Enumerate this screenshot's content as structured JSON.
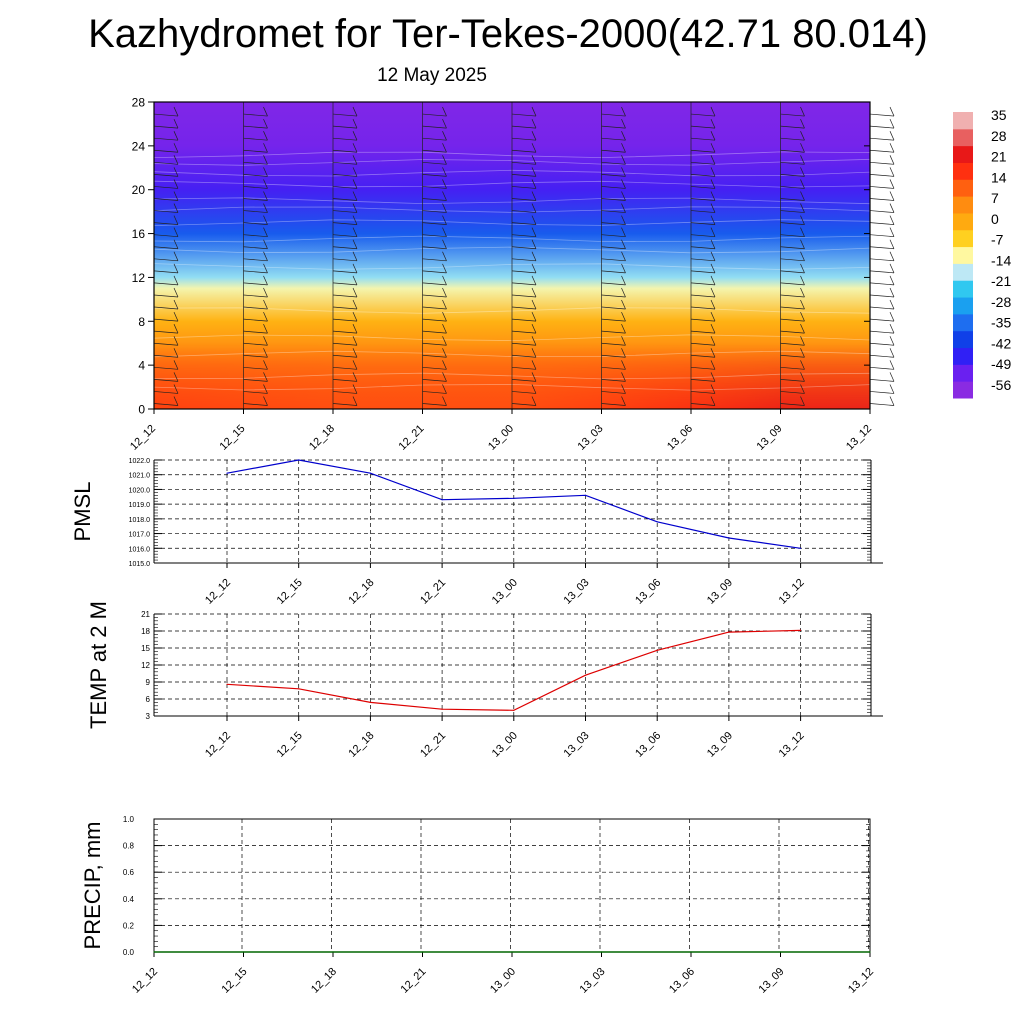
{
  "title": "Kazhydromet for Ter-Tekes-2000(42.71 80.014)",
  "subtitle": "12 May 2025",
  "chart_data": [
    {
      "type": "heatmap",
      "name": "temperature-height-section",
      "xlabel": "",
      "ylabel": "",
      "x": [
        "12_12",
        "12_15",
        "12_18",
        "12_21",
        "13_00",
        "13_03",
        "13_06",
        "13_09",
        "13_12"
      ],
      "y_ticks": [
        0,
        4,
        8,
        12,
        16,
        20,
        24,
        28
      ],
      "ylim": [
        0,
        28
      ],
      "grid": false,
      "colorbar": {
        "position": "right",
        "labels": [
          "35",
          "28",
          "21",
          "14",
          "7",
          "0",
          "-7",
          "-14",
          "-21",
          "-28",
          "-35",
          "-42",
          "-49",
          "-56"
        ],
        "colors": [
          "#8a2be2",
          "#6a20f0",
          "#3020f5",
          "#1040e8",
          "#1e6ef0",
          "#1aa0f0",
          "#30c8f0",
          "#bde8f5",
          "#fff8a0",
          "#ffd020",
          "#ffaa10",
          "#ff8c10",
          "#ff6010",
          "#ff3010",
          "#e81818",
          "#e86060",
          "#f0b0b0"
        ]
      },
      "temperature_profile": [
        {
          "height": 0,
          "temp": 14
        },
        {
          "height": 4,
          "temp": 10
        },
        {
          "height": 8,
          "temp": 0
        },
        {
          "height": 11,
          "temp": -12
        },
        {
          "height": 12,
          "temp": -19
        },
        {
          "height": 16,
          "temp": -38
        },
        {
          "height": 20,
          "temp": -50
        },
        {
          "height": 24,
          "temp": -56
        },
        {
          "height": 28,
          "temp": -58
        }
      ],
      "surface_temps": [
        12,
        11,
        10,
        10,
        10,
        12,
        15,
        19,
        20
      ]
    },
    {
      "type": "line",
      "name": "pmsl",
      "ylabel": "PMSL",
      "x": [
        "12_12",
        "12_15",
        "12_18",
        "12_21",
        "13_00",
        "13_03",
        "13_06",
        "13_09",
        "13_12"
      ],
      "y_ticks": [
        "1015.0",
        "1016.0",
        "1017.0",
        "1018.0",
        "1019.0",
        "1020.0",
        "1021.0",
        "1022.0"
      ],
      "ylim": [
        1015,
        1022
      ],
      "grid": true,
      "series": [
        {
          "color": "#0000cc",
          "values": [
            1021.1,
            1022.0,
            1021.1,
            1019.3,
            1019.4,
            1019.6,
            1017.8,
            1016.7,
            1016.0
          ]
        }
      ]
    },
    {
      "type": "line",
      "name": "temp-2m",
      "ylabel": "TEMP at 2 M",
      "x": [
        "12_12",
        "12_15",
        "12_18",
        "12_21",
        "13_00",
        "13_03",
        "13_06",
        "13_09",
        "13_12"
      ],
      "y_ticks": [
        "3",
        "6",
        "9",
        "12",
        "15",
        "18",
        "21"
      ],
      "ylim": [
        3,
        21
      ],
      "grid": true,
      "series": [
        {
          "color": "#dd0000",
          "values": [
            8.6,
            7.8,
            5.4,
            4.2,
            4.0,
            10.2,
            14.6,
            17.8,
            18.1
          ]
        }
      ]
    },
    {
      "type": "line",
      "name": "precip",
      "ylabel": "PRECIP, mm",
      "x": [
        "12_12",
        "12_15",
        "12_18",
        "12_21",
        "13_00",
        "13_03",
        "13_06",
        "13_09",
        "13_12"
      ],
      "y_ticks": [
        "0.0",
        "0.2",
        "0.4",
        "0.6",
        "0.8",
        "1.0"
      ],
      "ylim": [
        0,
        1
      ],
      "grid": true,
      "series": [
        {
          "color": "#006600",
          "values": [
            0,
            0,
            0,
            0,
            0,
            0,
            0,
            0,
            0
          ]
        }
      ]
    }
  ]
}
